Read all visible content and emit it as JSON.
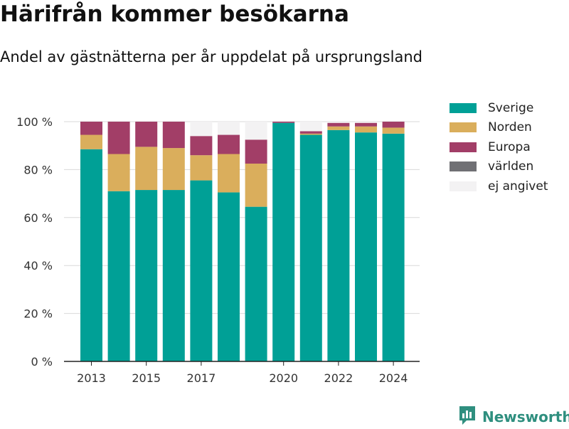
{
  "title": "Härifrån kommer besökarna",
  "subtitle": "Andel av gästnätterna per år uppdelat på ursprungsland",
  "brand": "Newsworthy",
  "colors": {
    "Sverige": "#00a096",
    "Norden": "#daae5c",
    "Europa": "#a23e67",
    "världen": "#707074",
    "ej angivet": "#f3f2f3",
    "grid": "#d9d9d9",
    "brand": "#2f8f7f"
  },
  "chart_data": {
    "type": "bar",
    "stacked": true,
    "categories": [
      "2013",
      "2014",
      "2015",
      "2016",
      "2017",
      "2018",
      "2019",
      "2020",
      "2021",
      "2022",
      "2023",
      "2024"
    ],
    "tick_labels": [
      "2013",
      "2015",
      "2017",
      "2020",
      "2022",
      "2024"
    ],
    "y_tick_labels": [
      "0 %",
      "20 %",
      "40 %",
      "60 %",
      "80 %",
      "100 %"
    ],
    "ylim": [
      0,
      100
    ],
    "grid": true,
    "legend_position": "right",
    "series": [
      {
        "name": "Sverige",
        "values": [
          88.5,
          71,
          71.5,
          71.5,
          75.5,
          70.5,
          64.5,
          99.5,
          94.5,
          96.5,
          95.5,
          95
        ]
      },
      {
        "name": "Norden",
        "values": [
          6,
          15.5,
          18,
          17.5,
          10.5,
          16,
          18,
          0,
          0.5,
          1.5,
          2.5,
          2.5
        ]
      },
      {
        "name": "Europa",
        "values": [
          5.5,
          13.5,
          10.5,
          11,
          8,
          8,
          10,
          0.5,
          1,
          1.5,
          1.5,
          2.5
        ]
      },
      {
        "name": "världen",
        "values": [
          0,
          0,
          0,
          0,
          0,
          0,
          0,
          0,
          0,
          0,
          0,
          0
        ]
      },
      {
        "name": "ej angivet",
        "values": [
          0,
          0,
          0,
          0,
          6,
          5.5,
          7.5,
          0,
          4,
          0.5,
          0.5,
          0
        ]
      }
    ]
  }
}
